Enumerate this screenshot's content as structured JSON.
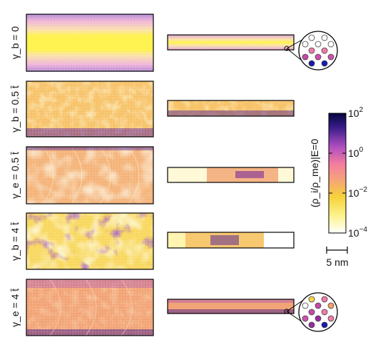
{
  "rows": [
    {
      "label": "γ_b = 0"
    },
    {
      "label": "γ_b = 0.5 t̄"
    },
    {
      "label": "γ_e = 0.5 t̄"
    },
    {
      "label": "γ_b = 4 t̄"
    },
    {
      "label": "γ_e = 4 t̄"
    }
  ],
  "colorbar": {
    "axis_label": "(ρ_i/ρ_me)|E=0",
    "ticks": [
      {
        "base": "10",
        "exp": "2"
      },
      {
        "base": "10",
        "exp": "0"
      },
      {
        "base": "10",
        "exp": "−2"
      },
      {
        "base": "10",
        "exp": "−4"
      }
    ],
    "colors": [
      "#0a0a55",
      "#7a2aa8",
      "#e85ab0",
      "#f3a07e",
      "#f8d23a",
      "#fffce0",
      "#ffffff"
    ]
  },
  "scalebar": {
    "label": "5 nm"
  }
}
